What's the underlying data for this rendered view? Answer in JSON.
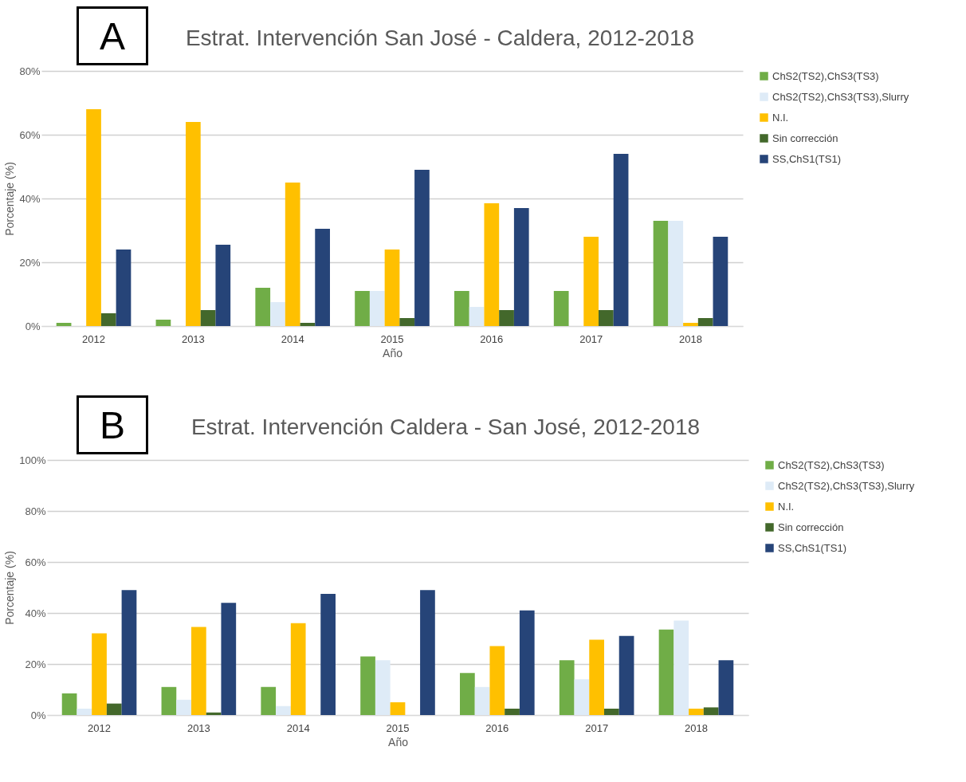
{
  "chart_data": [
    {
      "type": "bar",
      "title": "Estrat. Intervención San José - Caldera, 2012-2018",
      "xlabel": "Año",
      "ylabel": "Porcentaje (%)",
      "annotations": [
        "A"
      ],
      "categories": [
        "2012",
        "2013",
        "2014",
        "2015",
        "2016",
        "2017",
        "2018"
      ],
      "series": [
        {
          "name": "ChS2(TS2),ChS3(TS3)",
          "color": "#70ad47",
          "values": [
            1,
            2,
            12,
            11,
            11,
            11,
            33
          ]
        },
        {
          "name": "ChS2(TS2),ChS3(TS3),Slurry",
          "color": "#deebf7",
          "values": [
            0,
            0,
            7.5,
            11,
            6,
            0,
            33
          ]
        },
        {
          "name": "N.I.",
          "color": "#ffc000",
          "values": [
            68,
            64,
            45,
            24,
            38.5,
            28,
            1
          ]
        },
        {
          "name": "Sin corrección",
          "color": "#43682b",
          "values": [
            4,
            5,
            1,
            2.5,
            5,
            5,
            2.5
          ]
        },
        {
          "name": "SS,ChS1(TS1)",
          "color": "#264478",
          "values": [
            24,
            25.5,
            30.5,
            49,
            37,
            54,
            28
          ]
        }
      ],
      "ylim": [
        0,
        80
      ],
      "yticks": [
        {
          "value": 0,
          "label": "0%"
        },
        {
          "value": 20,
          "label": "20%"
        },
        {
          "value": 40,
          "label": "40%"
        },
        {
          "value": 60,
          "label": "60%"
        },
        {
          "value": 80,
          "label": "80%"
        }
      ],
      "grid": "y",
      "legend": "right"
    },
    {
      "type": "bar",
      "title": "Estrat. Intervención Caldera - San José, 2012-2018",
      "xlabel": "Año",
      "ylabel": "Porcentaje (%)",
      "annotations": [
        "B"
      ],
      "categories": [
        "2012",
        "2013",
        "2014",
        "2015",
        "2016",
        "2017",
        "2018"
      ],
      "series": [
        {
          "name": "ChS2(TS2),ChS3(TS3)",
          "color": "#70ad47",
          "values": [
            8.5,
            11,
            11,
            23,
            16.5,
            21.5,
            33.5
          ]
        },
        {
          "name": "ChS2(TS2),ChS3(TS3),Slurry",
          "color": "#deebf7",
          "values": [
            2.5,
            6,
            3.5,
            21.5,
            11,
            14,
            37
          ]
        },
        {
          "name": "N.I.",
          "color": "#ffc000",
          "values": [
            32,
            34.5,
            36,
            5,
            27,
            29.5,
            2.5
          ]
        },
        {
          "name": "Sin corrección",
          "color": "#43682b",
          "values": [
            4.5,
            1,
            0,
            0,
            2.5,
            2.5,
            3
          ]
        },
        {
          "name": "SS,ChS1(TS1)",
          "color": "#264478",
          "values": [
            49,
            44,
            47.5,
            49,
            41,
            31,
            21.5
          ]
        }
      ],
      "ylim": [
        0,
        100
      ],
      "yticks": [
        {
          "value": 0,
          "label": "0%"
        },
        {
          "value": 20,
          "label": "20%"
        },
        {
          "value": 40,
          "label": "40%"
        },
        {
          "value": 60,
          "label": "60%"
        },
        {
          "value": 80,
          "label": "80%"
        },
        {
          "value": 100,
          "label": "100%"
        }
      ],
      "grid": "y",
      "legend": "right"
    }
  ]
}
